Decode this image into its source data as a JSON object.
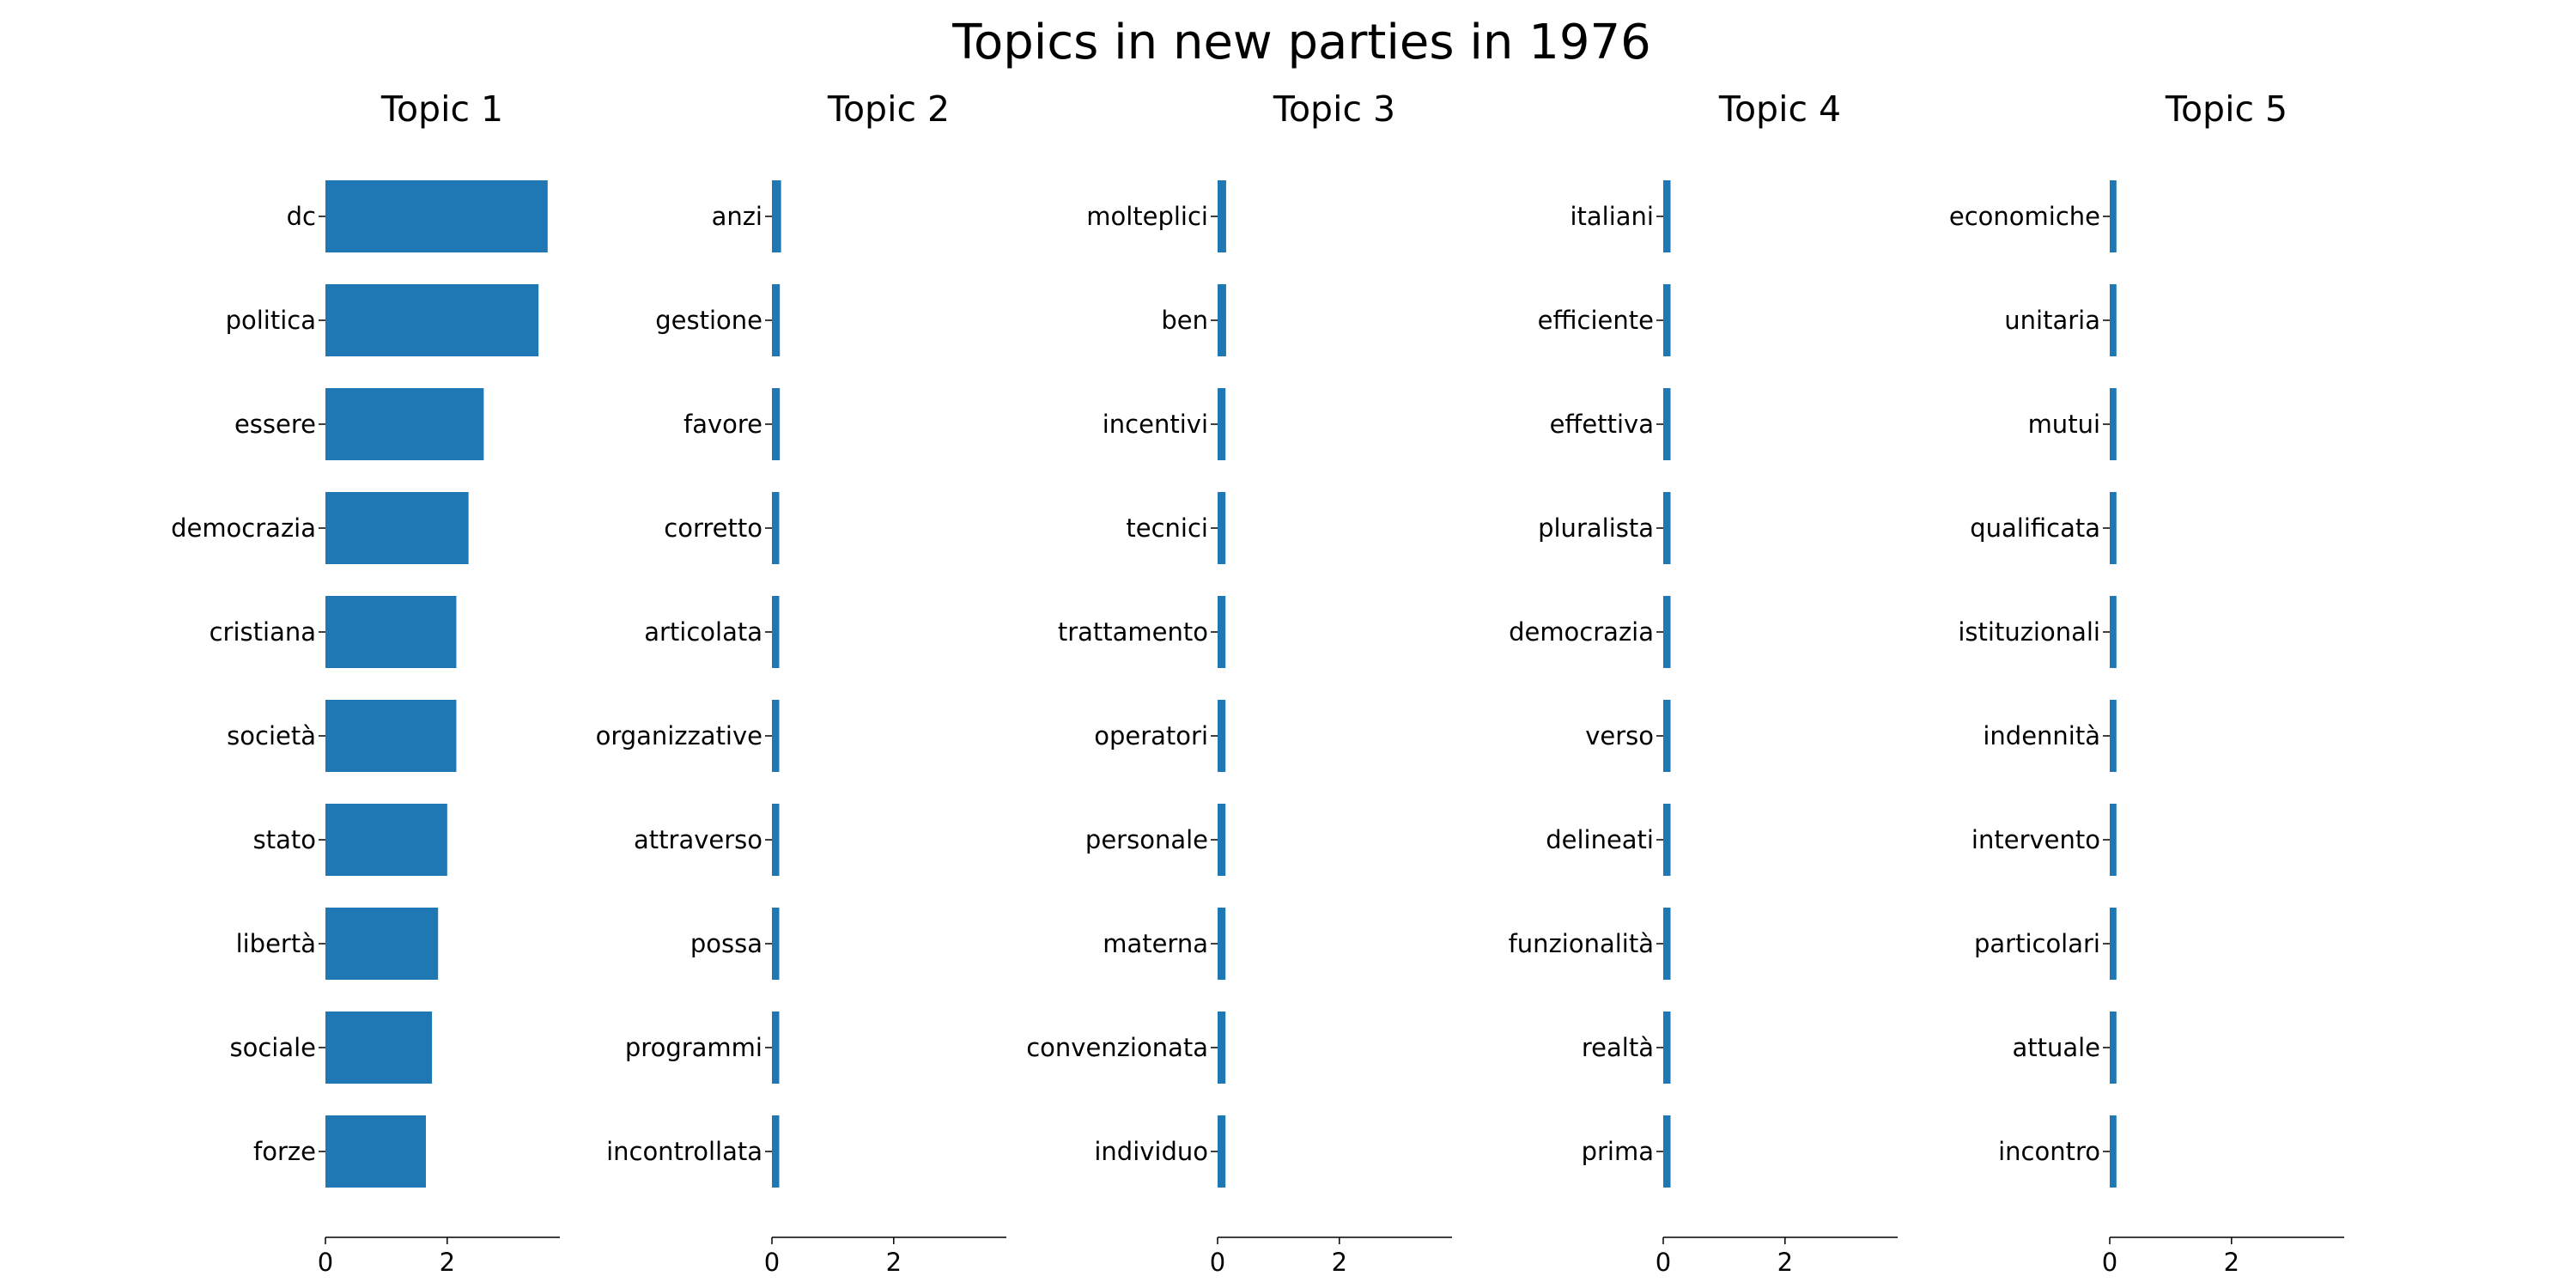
{
  "chart_data": {
    "type": "bar",
    "orientation": "horizontal",
    "title": "Topics in new parties in 1976",
    "bar_color": "#1f77b4",
    "xlim": [
      0,
      3.85
    ],
    "xticks": [
      0,
      2
    ],
    "shared_x": true,
    "grid": false,
    "subplots": [
      {
        "title": "Topic 1",
        "categories": [
          "dc",
          "politica",
          "essere",
          "democrazia",
          "cristiana",
          "società",
          "stato",
          "libertà",
          "sociale",
          "forze"
        ],
        "values": [
          3.65,
          3.5,
          2.6,
          2.35,
          2.15,
          2.15,
          2.0,
          1.85,
          1.75,
          1.65
        ]
      },
      {
        "title": "Topic 2",
        "categories": [
          "anzi",
          "gestione",
          "favore",
          "corretto",
          "articolata",
          "organizzative",
          "attraverso",
          "possa",
          "programmi",
          "incontrollata"
        ],
        "values": [
          0.15,
          0.13,
          0.13,
          0.12,
          0.12,
          0.12,
          0.12,
          0.12,
          0.12,
          0.12
        ]
      },
      {
        "title": "Topic 3",
        "categories": [
          "molteplici",
          "ben",
          "incentivi",
          "tecnici",
          "trattamento",
          "operatori",
          "personale",
          "materna",
          "convenzionata",
          "individuo"
        ],
        "values": [
          0.14,
          0.14,
          0.13,
          0.13,
          0.13,
          0.13,
          0.13,
          0.13,
          0.13,
          0.13
        ]
      },
      {
        "title": "Topic 4",
        "categories": [
          "italiani",
          "efficiente",
          "effettiva",
          "pluralista",
          "democrazia",
          "verso",
          "delineati",
          "funzionalità",
          "realtà",
          "prima"
        ],
        "values": [
          0.12,
          0.12,
          0.12,
          0.12,
          0.12,
          0.12,
          0.12,
          0.12,
          0.12,
          0.12
        ]
      },
      {
        "title": "Topic 5",
        "categories": [
          "economiche",
          "unitaria",
          "mutui",
          "qualificata",
          "istituzionali",
          "indennità",
          "intervento",
          "particolari",
          "attuale",
          "incontro"
        ],
        "values": [
          0.11,
          0.11,
          0.11,
          0.11,
          0.11,
          0.11,
          0.11,
          0.11,
          0.11,
          0.11
        ]
      }
    ]
  }
}
